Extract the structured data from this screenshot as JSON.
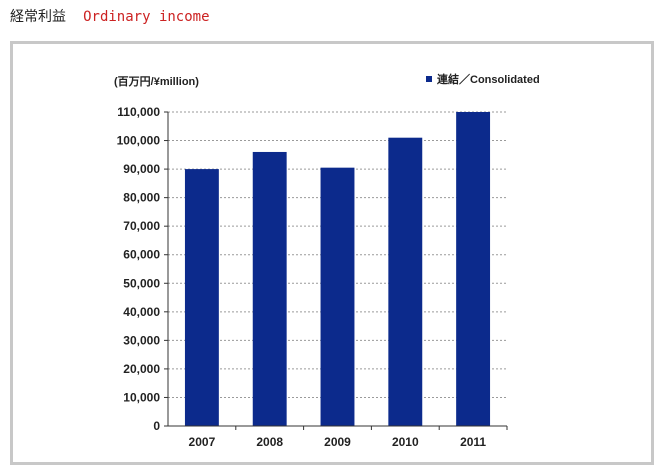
{
  "header": {
    "title_jp": "経常利益",
    "title_en": "Ordinary income"
  },
  "colors": {
    "bar": "#0c2a8c",
    "title_en": "#cc2222",
    "panel_border": "#c8c8c8",
    "grid": "#9a9a9a"
  },
  "chart_data": {
    "type": "bar",
    "unit_label": "(百万円/¥million)",
    "categories": [
      "2007",
      "2008",
      "2009",
      "2010",
      "2011"
    ],
    "series": [
      {
        "name": "連結／Consolidated",
        "values": [
          90000,
          96000,
          90500,
          101000,
          110000
        ]
      }
    ],
    "ylim": [
      0,
      110000
    ],
    "y_ticks": [
      "0",
      "10,000",
      "20,000",
      "30,000",
      "40,000",
      "50,000",
      "60,000",
      "70,000",
      "80,000",
      "90,000",
      "100,000",
      "110,000"
    ],
    "grid": "horizontal dotted",
    "legend_position": "top-right"
  }
}
